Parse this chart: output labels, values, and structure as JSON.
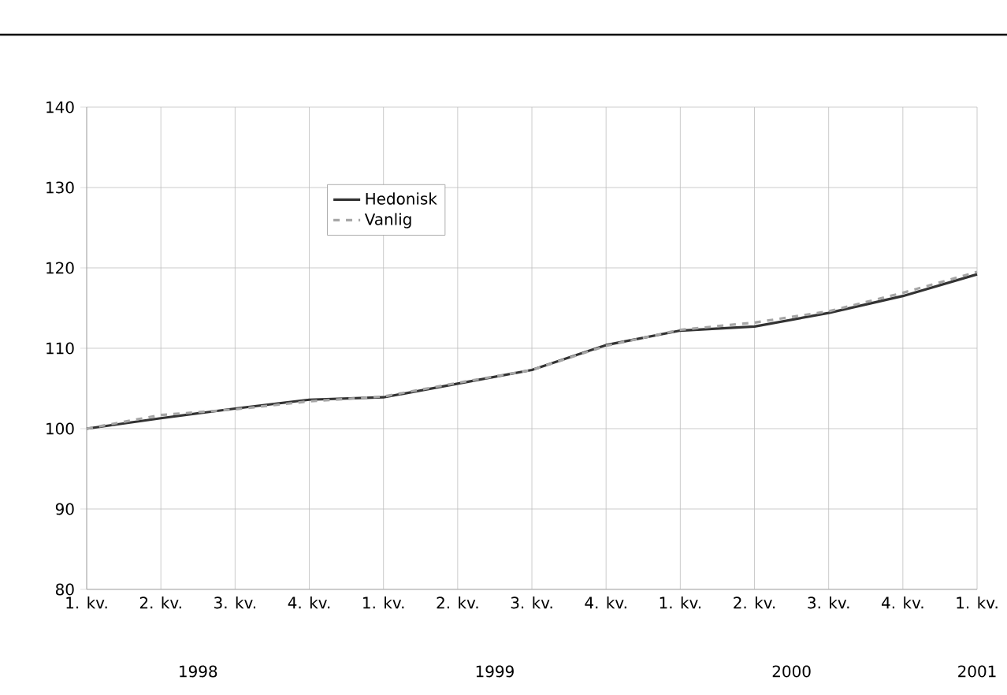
{
  "chart_data": {
    "type": "line",
    "categories": [
      "1. kv.",
      "2. kv.",
      "3. kv.",
      "4. kv.",
      "1. kv.",
      "2. kv.",
      "3. kv.",
      "4. kv.",
      "1. kv.",
      "2. kv.",
      "3. kv.",
      "4. kv.",
      "1. kv."
    ],
    "series": [
      {
        "name": "Hedonisk",
        "color": "#333333",
        "line_style": "solid",
        "values": [
          100,
          101.3,
          102.5,
          103.6,
          103.9,
          105.6,
          107.3,
          110.4,
          112.2,
          112.7,
          114.4,
          116.5,
          119.2
        ]
      },
      {
        "name": "Vanlig",
        "color": "#a6a6a6",
        "line_style": "dashed",
        "values": [
          100,
          101.7,
          102.4,
          103.4,
          104.0,
          105.7,
          107.3,
          110.3,
          112.3,
          113.2,
          114.6,
          116.9,
          119.5
        ]
      }
    ],
    "annotations": [
      "1998",
      "1999",
      "2000",
      "2001"
    ],
    "ylim": [
      80,
      140
    ],
    "yticks": [
      80,
      90,
      100,
      110,
      120,
      130,
      140
    ],
    "grid": true,
    "legend": "top left",
    "marker": "none"
  }
}
